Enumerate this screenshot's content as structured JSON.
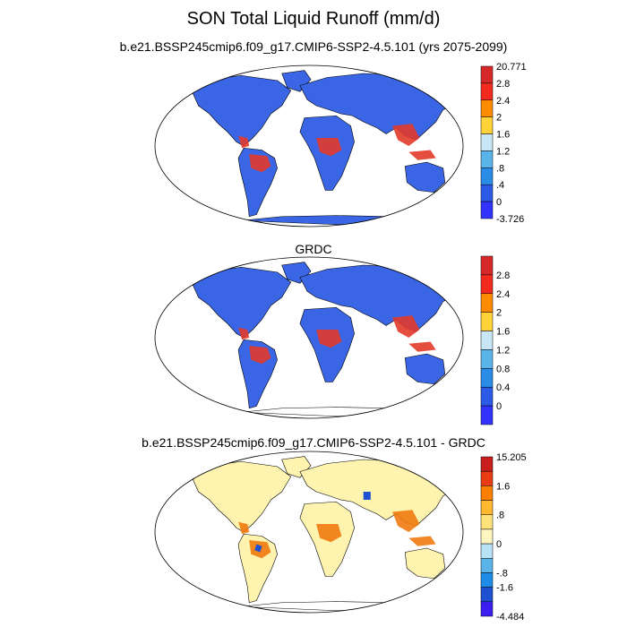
{
  "title": "SON Total Liquid Runoff (mm/d)",
  "colors": {
    "ocean": "#ffffff",
    "coast": "#000000"
  },
  "panels": [
    {
      "id": "p1",
      "subtitle": "b.e21.BSSP245cmip6.f09_g17.CMIP6-SSP2-4.5.101 (yrs 2075-2099)",
      "land_fill": "#3a66e6",
      "hot_fill": "#e23a2a",
      "colorbar": {
        "labels": [
          "20.771",
          "2.8",
          "2.4",
          "2",
          "1.6",
          "1.2",
          ".8",
          ".4",
          "0",
          "-3.726"
        ],
        "colors": [
          "#d62828",
          "#f22b1e",
          "#ff8c00",
          "#ffd23a",
          "#c8e6f5",
          "#5ab4ea",
          "#2a8ce6",
          "#2a5ae6",
          "#3333ff"
        ]
      }
    },
    {
      "id": "p2",
      "subtitle": "GRDC",
      "land_fill": "#3a66e6",
      "hot_fill": "#e23a2a",
      "colorbar": {
        "labels": [
          "2.8",
          "2.4",
          "2",
          "1.6",
          "1.2",
          "0.8",
          "0.4",
          "0"
        ],
        "colors": [
          "#d62828",
          "#f22b1e",
          "#ff8c00",
          "#ffd23a",
          "#c8e6f5",
          "#5ab4ea",
          "#2a8ce6",
          "#2a5ae6",
          "#3333ff"
        ]
      }
    },
    {
      "id": "p3",
      "subtitle": "b.e21.BSSP245cmip6.f09_g17.CMIP6-SSP2-4.5.101 - GRDC",
      "land_fill": "#fff3b0",
      "hot_fill": "#f07a10",
      "colorbar": {
        "labels": [
          "15.205",
          "1.6",
          ".8",
          "0",
          "-.8",
          "-1.6",
          "-4.484"
        ],
        "colors": [
          "#c81e1e",
          "#e83c14",
          "#ff8000",
          "#ffb830",
          "#ffe27a",
          "#fff5c0",
          "#b8e2f5",
          "#5ab4ea",
          "#1e8ce6",
          "#1e50d2",
          "#3c1ef0"
        ]
      }
    }
  ]
}
